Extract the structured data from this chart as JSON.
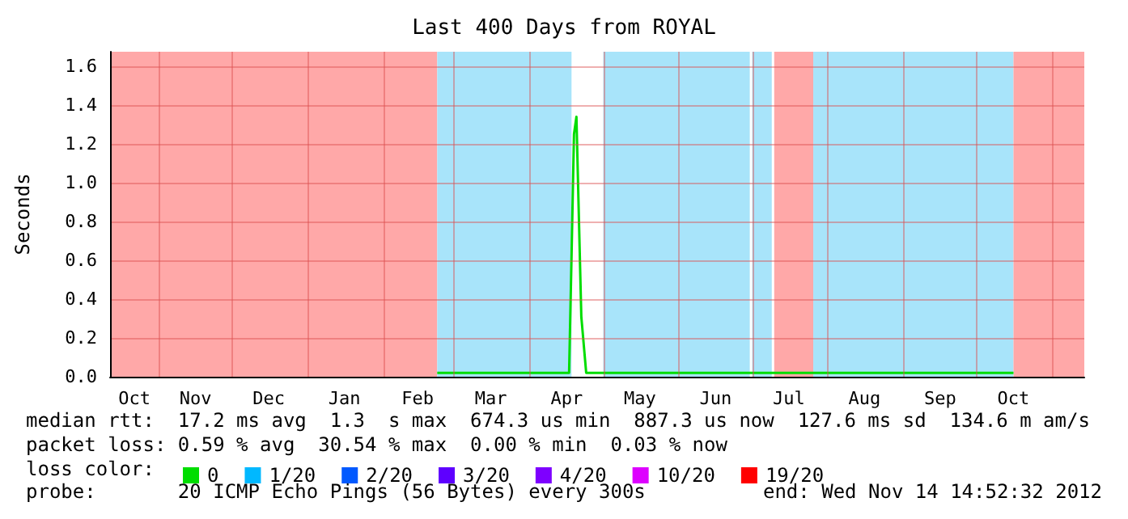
{
  "chart_data": {
    "type": "line",
    "title": "Last 400 Days from ROYAL",
    "ylabel": "Seconds",
    "legend_title": "loss color:",
    "xlim": [
      "2011-10-12",
      "2012-11-14"
    ],
    "xticks": [
      {
        "value": "2011-10-22",
        "label": "Oct"
      },
      {
        "value": "2011-11-01",
        "label": null
      },
      {
        "value": "2011-11-16",
        "label": "Nov"
      },
      {
        "value": "2011-12-01",
        "label": null
      },
      {
        "value": "2011-12-16",
        "label": "Dec"
      },
      {
        "value": "2012-01-01",
        "label": null
      },
      {
        "value": "2012-01-16",
        "label": "Jan"
      },
      {
        "value": "2012-02-01",
        "label": null
      },
      {
        "value": "2012-02-15",
        "label": "Feb"
      },
      {
        "value": "2012-03-01",
        "label": null
      },
      {
        "value": "2012-03-16",
        "label": "Mar"
      },
      {
        "value": "2012-04-01",
        "label": null
      },
      {
        "value": "2012-04-16",
        "label": "Apr"
      },
      {
        "value": "2012-05-01",
        "label": null
      },
      {
        "value": "2012-05-16",
        "label": "May"
      },
      {
        "value": "2012-06-01",
        "label": null
      },
      {
        "value": "2012-06-16",
        "label": "Jun"
      },
      {
        "value": "2012-07-01",
        "label": null
      },
      {
        "value": "2012-07-16",
        "label": "Jul"
      },
      {
        "value": "2012-08-01",
        "label": null
      },
      {
        "value": "2012-08-16",
        "label": "Aug"
      },
      {
        "value": "2012-09-01",
        "label": null
      },
      {
        "value": "2012-09-16",
        "label": "Sep"
      },
      {
        "value": "2012-10-01",
        "label": null
      },
      {
        "value": "2012-10-16",
        "label": "Oct"
      },
      {
        "value": "2012-11-01",
        "label": null
      }
    ],
    "ylim": [
      0,
      1.675
    ],
    "yticks": [
      {
        "value": 0,
        "label": "0.0"
      },
      0.2,
      0.4,
      0.6,
      0.8,
      {
        "value": 1,
        "label": "1.0"
      },
      1.2,
      1.4,
      1.6
    ],
    "grid": true,
    "legend": "bottom left",
    "marker": "none",
    "line_style": "solid",
    "x": [
      "2012-02-23",
      "2012-04-17",
      "2012-04-18",
      "2012-04-19",
      "2012-04-20",
      "2012-04-22",
      "2012-04-24",
      "2012-05-01",
      "2012-06-30",
      "2012-07-01",
      "2012-07-09",
      "2012-07-26",
      "2012-10-16"
    ],
    "series": [
      {
        "name": "0",
        "color": "#00dd00",
        "values": [
          0.02,
          0.02,
          0.62,
          1.25,
          1.34,
          0.31,
          0.02,
          0.02,
          0.02,
          0.02,
          0.02,
          0.02,
          0.02
        ]
      },
      {
        "name": "1/20",
        "color": "#00b8ff",
        "values": [
          null,
          null,
          null,
          null,
          null,
          null,
          null,
          null,
          null,
          null,
          null,
          null,
          null
        ]
      },
      {
        "name": "2/20",
        "color": "#0059ff",
        "values": [
          null,
          null,
          null,
          null,
          null,
          null,
          null,
          null,
          null,
          null,
          null,
          null,
          null
        ]
      },
      {
        "name": "3/20",
        "color": "#5e00ff",
        "values": [
          null,
          null,
          null,
          null,
          null,
          null,
          null,
          null,
          null,
          null,
          null,
          null,
          null
        ]
      },
      {
        "name": "4/20",
        "color": "#7e00ff",
        "values": [
          null,
          null,
          null,
          null,
          null,
          null,
          null,
          null,
          null,
          null,
          null,
          null,
          null
        ]
      },
      {
        "name": "10/20",
        "color": "#dd00ff",
        "values": [
          null,
          null,
          null,
          null,
          null,
          null,
          null,
          null,
          null,
          null,
          null,
          null,
          null
        ]
      },
      {
        "name": "19/20",
        "color": "#ff0000",
        "values": [
          null,
          null,
          null,
          null,
          null,
          null,
          null,
          null,
          null,
          null,
          null,
          null,
          null
        ]
      }
    ],
    "bands": [
      {
        "axis": "x",
        "from": "2011-10-12",
        "to": "2012-02-23",
        "color": "#ffa8a8"
      },
      {
        "axis": "x",
        "from": "2012-02-23",
        "to": "2012-04-18",
        "color": "#a8e4fa"
      },
      {
        "axis": "x",
        "from": "2012-05-01",
        "to": "2012-06-30",
        "color": "#a8e4fa"
      },
      {
        "axis": "x",
        "from": "2012-07-01",
        "to": "2012-07-09",
        "color": "#a8e4fa"
      },
      {
        "axis": "x",
        "from": "2012-07-10",
        "to": "2012-07-26",
        "color": "#ffa8a8"
      },
      {
        "axis": "x",
        "from": "2012-07-26",
        "to": "2012-10-16",
        "color": "#a8e4fa"
      },
      {
        "axis": "x",
        "from": "2012-10-16",
        "to": "2012-11-14",
        "color": "#ffa8a8"
      }
    ],
    "annotations": [
      "median rtt:  17.2 ms avg  1.3  s max  674.3 us min  887.3 us now  127.6 ms sd  134.6 m am/s",
      "packet loss: 0.59 % avg  30.54 % max  0.00 % min  0.03 % now",
      "probe:       20 ICMP Echo Pings (56 Bytes) every 300s",
      "end: Wed Nov 14 14:52:32 2012"
    ]
  }
}
